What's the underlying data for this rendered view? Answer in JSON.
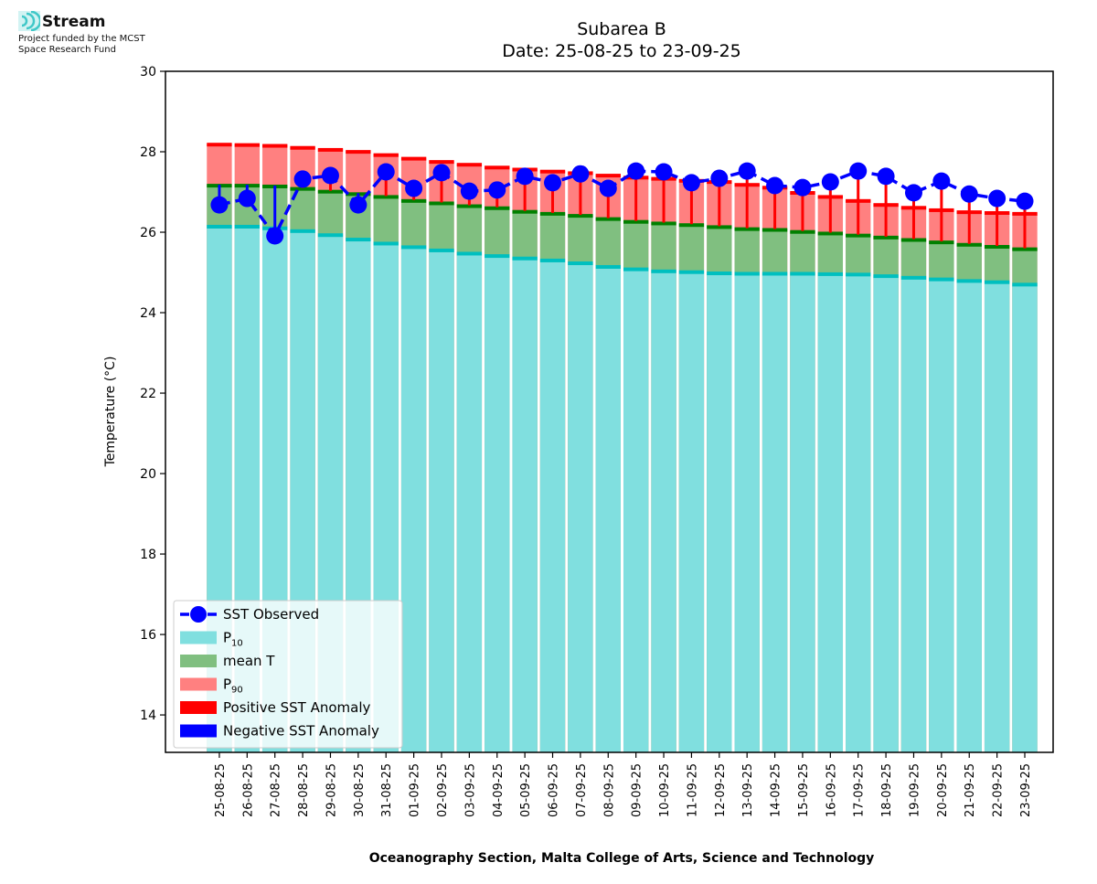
{
  "logo": {
    "name": "Stream",
    "subtitle_line1": "Project funded by the MCST",
    "subtitle_line2": "Space Research Fund"
  },
  "chart_data": {
    "type": "bar",
    "title": "Subarea B",
    "subtitle": "Date: 25-08-25 to 23-09-25",
    "xlabel": "Oceanography Section, Malta College of Arts, Science and Technology",
    "ylabel": "Temperature (°C)",
    "ylim": [
      13.07,
      30
    ],
    "yticks": [
      14,
      16,
      18,
      20,
      22,
      24,
      26,
      28,
      30
    ],
    "legend_position": "lower-left",
    "categories": [
      "25-08-25",
      "26-08-25",
      "27-08-25",
      "28-08-25",
      "29-08-25",
      "30-08-25",
      "31-08-25",
      "01-09-25",
      "02-09-25",
      "03-09-25",
      "04-09-25",
      "05-09-25",
      "06-09-25",
      "07-09-25",
      "08-09-25",
      "09-09-25",
      "10-09-25",
      "11-09-25",
      "12-09-25",
      "13-09-25",
      "14-09-25",
      "15-09-25",
      "16-09-25",
      "17-09-25",
      "18-09-25",
      "19-09-25",
      "20-09-25",
      "21-09-25",
      "22-09-25",
      "23-09-25"
    ],
    "series": [
      {
        "name": "P10",
        "label_main": "P",
        "label_sub": "10",
        "color": "#80dfdf",
        "edge": "#00bfbf",
        "values": [
          26.16,
          26.16,
          26.12,
          26.05,
          25.95,
          25.84,
          25.74,
          25.65,
          25.57,
          25.49,
          25.43,
          25.37,
          25.32,
          25.25,
          25.16,
          25.1,
          25.05,
          25.03,
          25.0,
          24.99,
          24.99,
          24.99,
          24.98,
          24.97,
          24.93,
          24.89,
          24.85,
          24.81,
          24.78,
          24.72
        ]
      },
      {
        "name": "mean T",
        "label_main": "mean T",
        "label_sub": "",
        "color": "#80bf80",
        "edge": "#008000",
        "values": [
          27.18,
          27.18,
          27.16,
          27.1,
          27.03,
          26.97,
          26.9,
          26.8,
          26.74,
          26.67,
          26.62,
          26.53,
          26.48,
          26.43,
          26.35,
          26.28,
          26.24,
          26.2,
          26.15,
          26.1,
          26.08,
          26.03,
          25.99,
          25.94,
          25.89,
          25.83,
          25.77,
          25.71,
          25.66,
          25.6
        ]
      },
      {
        "name": "P90",
        "label_main": "P",
        "label_sub": "90",
        "color": "#ff8080",
        "edge": "#ff0000",
        "values": [
          28.2,
          28.19,
          28.17,
          28.12,
          28.07,
          28.02,
          27.94,
          27.85,
          27.77,
          27.7,
          27.63,
          27.58,
          27.53,
          27.49,
          27.43,
          27.38,
          27.35,
          27.3,
          27.27,
          27.2,
          27.13,
          27.0,
          26.9,
          26.8,
          26.7,
          26.63,
          26.57,
          26.52,
          26.5,
          26.48
        ]
      },
      {
        "name": "SST Observed",
        "label_main": "SST Observed",
        "label_sub": "",
        "color": "#0000ff",
        "values": [
          26.68,
          26.84,
          25.91,
          27.32,
          27.41,
          26.68,
          27.5,
          27.09,
          27.48,
          27.02,
          27.05,
          27.39,
          27.23,
          27.45,
          27.09,
          27.52,
          27.5,
          27.23,
          27.34,
          27.52,
          27.16,
          27.11,
          27.25,
          27.52,
          27.39,
          26.98,
          27.27,
          26.95,
          26.84,
          26.77
        ]
      }
    ],
    "anomaly_legend": [
      {
        "name": "Positive SST Anomaly",
        "color": "#ff0000"
      },
      {
        "name": "Negative SST Anomaly",
        "color": "#0000ff"
      }
    ]
  }
}
